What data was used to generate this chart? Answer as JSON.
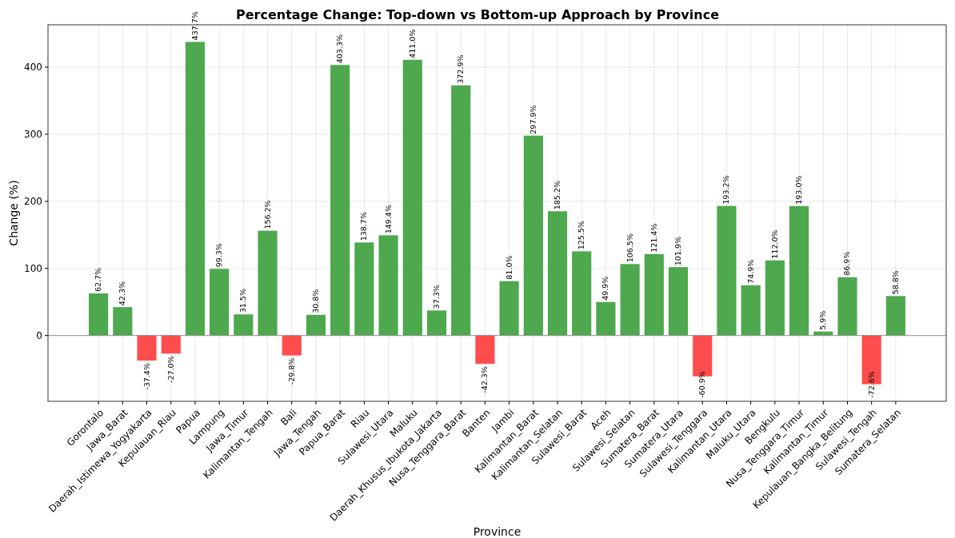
{
  "chart_data": {
    "type": "bar",
    "title": "Percentage Change: Top-down vs Bottom-up Approach by Province",
    "xlabel": "Province",
    "ylabel": "Change (%)",
    "categories": [
      "Gorontalo",
      "Jawa_Barat",
      "Daerah_Istimewa_Yogyakarta",
      "Kepulauan_Riau",
      "Papua",
      "Lampung",
      "Jawa_Timur",
      "Kalimantan_Tengah",
      "Bali",
      "Jawa_Tengah",
      "Papua_Barat",
      "Riau",
      "Sulawesi_Utara",
      "Maluku",
      "Daerah_Khusus_Ibukota_Jakarta",
      "Nusa_Tenggara_Barat",
      "Banten",
      "Jambi",
      "Kalimantan_Barat",
      "Kalimantan_Selatan",
      "Sulawesi_Barat",
      "Aceh",
      "Sulawesi_Selatan",
      "Sumatera_Barat",
      "Sumatera_Utara",
      "Sulawesi_Tenggara",
      "Kalimantan_Utara",
      "Maluku_Utara",
      "Bengkulu",
      "Nusa_Tenggara_Timur",
      "Kalimantan_Timur",
      "Kepulauan_Bangka_Belitung",
      "Sulawesi_Tengah",
      "Sumatera_Selatan"
    ],
    "values": [
      62.7,
      42.3,
      -37.4,
      -27.0,
      437.7,
      99.3,
      31.5,
      156.2,
      -29.8,
      30.8,
      403.3,
      138.7,
      149.4,
      411.0,
      37.3,
      372.9,
      -42.3,
      81.0,
      297.9,
      185.2,
      125.5,
      49.9,
      106.5,
      121.4,
      101.9,
      -60.9,
      193.2,
      74.9,
      112.0,
      193.0,
      5.9,
      86.9,
      -72.6,
      58.8
    ],
    "value_labels": [
      "62.7%",
      "42.3%",
      "-37.4%",
      "-27.0%",
      "437.7%",
      "99.3%",
      "31.5%",
      "156.2%",
      "-29.8%",
      "30.8%",
      "403.3%",
      "138.7%",
      "149.4%",
      "411.0%",
      "37.3%",
      "372.9%",
      "-42.3%",
      "81.0%",
      "297.9%",
      "185.2%",
      "125.5%",
      "49.9%",
      "106.5%",
      "121.4%",
      "101.9%",
      "-60.9%",
      "193.2%",
      "74.9%",
      "112.0%",
      "193.0%",
      "5.9%",
      "86.9%",
      "-72.6%",
      "58.8%"
    ],
    "colors": [
      "#4ea84e",
      "#4ea84e",
      "#ff4d4d",
      "#ff4d4d",
      "#4ea84e",
      "#4ea84e",
      "#4ea84e",
      "#4ea84e",
      "#ff4d4d",
      "#4ea84e",
      "#4ea84e",
      "#4ea84e",
      "#4ea84e",
      "#4ea84e",
      "#4ea84e",
      "#4ea84e",
      "#ff4d4d",
      "#4ea84e",
      "#4ea84e",
      "#4ea84e",
      "#4ea84e",
      "#4ea84e",
      "#4ea84e",
      "#4ea84e",
      "#4ea84e",
      "#ff4d4d",
      "#4ea84e",
      "#4ea84e",
      "#4ea84e",
      "#4ea84e",
      "#4ea84e",
      "#4ea84e",
      "#ff4d4d",
      "#4ea84e"
    ],
    "ylim": [
      -98.1,
      463.2
    ],
    "yticks": [
      0,
      100,
      200,
      300,
      400
    ],
    "grid": true,
    "ref_lines": [
      {
        "axis": "y",
        "value": 0,
        "color": "#808080"
      }
    ]
  }
}
